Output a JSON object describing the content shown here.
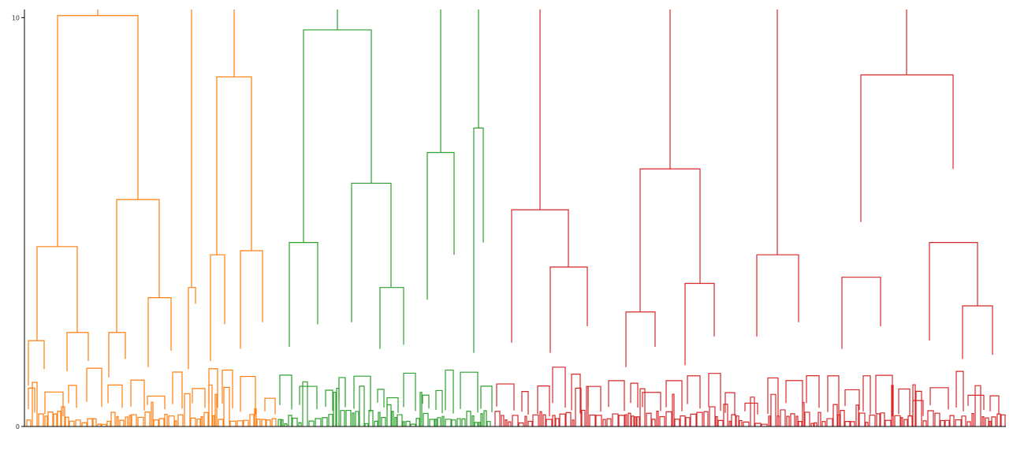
{
  "chart_data": {
    "type": "dendrogram",
    "title": "",
    "xlabel": "",
    "ylabel": "",
    "ylim": [
      0,
      10.2
    ],
    "yticks": [
      {
        "value": 0,
        "label": "0"
      },
      {
        "value": 10,
        "label": "10"
      }
    ],
    "x_domain": [
      0,
      1285
    ],
    "clusters": [
      {
        "name": "orange",
        "color": "#ff7f0e",
        "x_range": [
          32,
          351
        ]
      },
      {
        "name": "green",
        "color": "#2ca02c",
        "x_range": [
          351,
          626
        ]
      },
      {
        "name": "red",
        "color": "#d62728",
        "x_range": [
          626,
          1276
        ]
      }
    ],
    "top_link_color": "#ff7f0e",
    "links": [
      {
        "x1": 73,
        "x2": 175,
        "h": 10.05,
        "h1": 4.4,
        "h2": 5.55,
        "color": "#ff7f0e"
      },
      {
        "x1": 47,
        "x2": 98,
        "h": 4.4,
        "h1": 2.1,
        "h2": 2.3,
        "color": "#ff7f0e"
      },
      {
        "x1": 148,
        "x2": 202,
        "h": 5.55,
        "h1": 2.3,
        "h2": 3.15,
        "color": "#ff7f0e"
      },
      {
        "x1": 36,
        "x2": 56,
        "h": 2.1,
        "h1": 1.0,
        "h2": 1.4,
        "color": "#ff7f0e"
      },
      {
        "x1": 85,
        "x2": 112,
        "h": 2.3,
        "h1": 1.35,
        "h2": 1.6,
        "color": "#ff7f0e"
      },
      {
        "x1": 138,
        "x2": 159,
        "h": 2.3,
        "h1": 1.2,
        "h2": 1.65,
        "color": "#ff7f0e"
      },
      {
        "x1": 188,
        "x2": 217,
        "h": 3.15,
        "h1": 1.45,
        "h2": 1.85,
        "color": "#ff7f0e"
      },
      {
        "x1": 239,
        "x2": 248,
        "h": 3.4,
        "h1": 1.4,
        "h2": 3.0,
        "color": "#ff7f0e"
      },
      {
        "x1": 275,
        "x2": 319,
        "h": 8.55,
        "h1": 4.2,
        "h2": 4.3,
        "color": "#ff7f0e"
      },
      {
        "x1": 267,
        "x2": 285,
        "h": 4.2,
        "h1": 1.6,
        "h2": 2.5,
        "color": "#ff7f0e"
      },
      {
        "x1": 305,
        "x2": 333,
        "h": 4.3,
        "h1": 1.9,
        "h2": 2.55,
        "color": "#ff7f0e"
      },
      {
        "x1": 385,
        "x2": 471,
        "h": 9.7,
        "h1": 4.5,
        "h2": 5.95,
        "color": "#2ca02c"
      },
      {
        "x1": 367,
        "x2": 403,
        "h": 4.5,
        "h1": 1.95,
        "h2": 2.5,
        "color": "#2ca02c"
      },
      {
        "x1": 446,
        "x2": 496,
        "h": 5.95,
        "h1": 2.55,
        "h2": 3.4,
        "color": "#2ca02c"
      },
      {
        "x1": 482,
        "x2": 512,
        "h": 3.4,
        "h1": 1.9,
        "h2": 2.0,
        "color": "#2ca02c"
      },
      {
        "x1": 542,
        "x2": 576,
        "h": 6.7,
        "h1": 3.1,
        "h2": 4.2,
        "color": "#2ca02c"
      },
      {
        "x1": 601,
        "x2": 613,
        "h": 7.3,
        "h1": 1.8,
        "h2": 4.5,
        "color": "#2ca02c"
      },
      {
        "x1": 649,
        "x2": 721,
        "h": 5.3,
        "h1": 2.05,
        "h2": 3.9,
        "color": "#d62728"
      },
      {
        "x1": 698,
        "x2": 745,
        "h": 3.9,
        "h1": 1.8,
        "h2": 2.45,
        "color": "#d62728"
      },
      {
        "x1": 794,
        "x2": 831,
        "h": 2.8,
        "h1": 1.45,
        "h2": 1.95,
        "color": "#d62728"
      },
      {
        "x1": 812,
        "x2": 888,
        "h": 6.3,
        "h1": 2.8,
        "h2": 3.5,
        "color": "#d62728"
      },
      {
        "x1": 869,
        "x2": 906,
        "h": 3.5,
        "h1": 1.5,
        "h2": 2.2,
        "color": "#d62728"
      },
      {
        "x1": 960,
        "x2": 1013,
        "h": 4.2,
        "h1": 2.2,
        "h2": 2.55,
        "color": "#d62728"
      },
      {
        "x1": 1092,
        "x2": 1209,
        "h": 8.6,
        "h1": 5.0,
        "h2": 6.3,
        "color": "#d62728"
      },
      {
        "x1": 1068,
        "x2": 1117,
        "h": 3.65,
        "h1": 1.9,
        "h2": 2.45,
        "color": "#d62728"
      },
      {
        "x1": 1179,
        "x2": 1240,
        "h": 4.5,
        "h1": 2.1,
        "h2": 2.95,
        "color": "#d62728"
      },
      {
        "x1": 1221,
        "x2": 1259,
        "h": 2.95,
        "h1": 1.65,
        "h2": 1.75,
        "color": "#d62728"
      }
    ],
    "stems": [
      {
        "x": 124,
        "from": 10.05,
        "color": "#ff7f0e"
      },
      {
        "x": 243,
        "from": 3.4,
        "color": "#ff7f0e"
      },
      {
        "x": 297,
        "from": 8.55,
        "color": "#ff7f0e"
      },
      {
        "x": 428,
        "from": 9.7,
        "color": "#2ca02c"
      },
      {
        "x": 559,
        "from": 6.7,
        "color": "#2ca02c"
      },
      {
        "x": 607,
        "from": 7.3,
        "color": "#2ca02c"
      },
      {
        "x": 685,
        "from": 5.3,
        "color": "#d62728"
      },
      {
        "x": 850,
        "from": 6.3,
        "color": "#d62728"
      },
      {
        "x": 986,
        "from": 4.2,
        "color": "#d62728"
      },
      {
        "x": 1150,
        "from": 8.6,
        "color": "#d62728"
      }
    ]
  }
}
